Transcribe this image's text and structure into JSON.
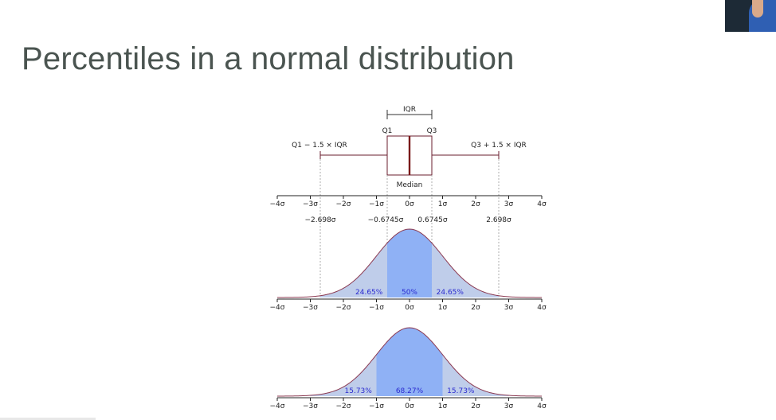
{
  "slide": {
    "title": "Percentiles in a normal distribution"
  },
  "boxplot": {
    "iqr_label": "IQR",
    "q1_label": "Q1",
    "q3_label": "Q3",
    "lower_whisker_label": "Q1 − 1.5 × IQR",
    "upper_whisker_label": "Q3 + 1.5 × IQR",
    "median_label": "Median",
    "marker_labels": [
      "−2.698σ",
      "−0.6745σ",
      "0.6745σ",
      "2.698σ"
    ]
  },
  "axes": {
    "tick_labels": [
      "−4σ",
      "−3σ",
      "−2σ",
      "−1σ",
      "0σ",
      "1σ",
      "2σ",
      "3σ",
      "4σ"
    ]
  },
  "colors": {
    "center_band": "#8fb1f5",
    "tail_band": "#bfcdea",
    "curve": "#8b3a52",
    "percent_text": "#2a2ad0",
    "median_line": "#7a1a1a"
  },
  "chart_data": [
    {
      "type": "area",
      "title": "",
      "x_range": [
        -4,
        4
      ],
      "markers": [
        -2.698,
        -0.6745,
        0.6745,
        2.698
      ],
      "regions": [
        {
          "from": -2.698,
          "to": -0.6745,
          "label": "24.65%"
        },
        {
          "from": -0.6745,
          "to": 0.6745,
          "label": "50%"
        },
        {
          "from": 0.6745,
          "to": 2.698,
          "label": "24.65%"
        }
      ]
    },
    {
      "type": "area",
      "title": "",
      "x_range": [
        -4,
        4
      ],
      "markers": [
        -3,
        -1,
        1,
        3
      ],
      "regions": [
        {
          "from": -3,
          "to": -1,
          "label": "15.73%"
        },
        {
          "from": -1,
          "to": 1,
          "label": "68.27%"
        },
        {
          "from": 1,
          "to": 3,
          "label": "15.73%"
        }
      ]
    }
  ]
}
